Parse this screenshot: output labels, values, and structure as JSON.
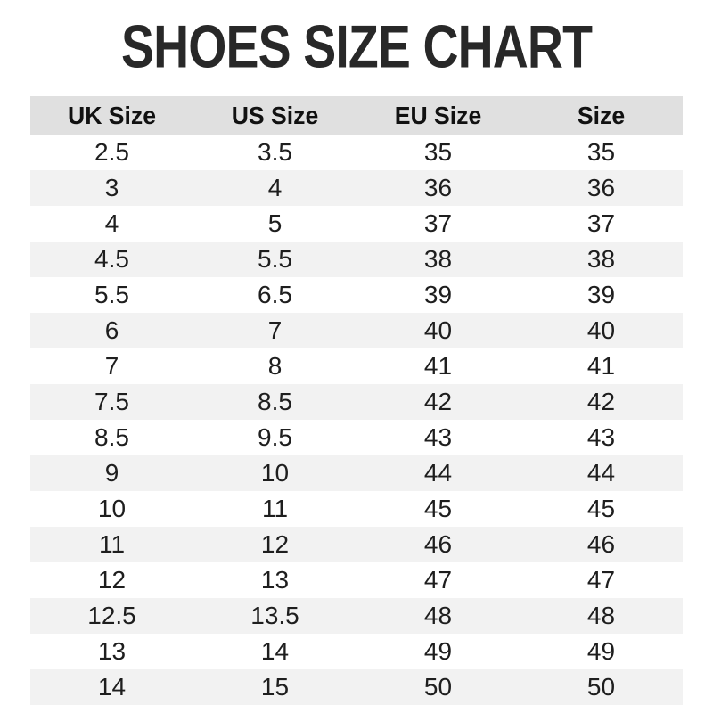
{
  "page_title": "SHOES SIZE CHART",
  "chart_data": {
    "type": "table",
    "title": "SHOES SIZE CHART",
    "columns": [
      "UK Size",
      "US Size",
      "EU Size",
      "Size"
    ],
    "rows": [
      [
        "2.5",
        "3.5",
        "35",
        "35"
      ],
      [
        "3",
        "4",
        "36",
        "36"
      ],
      [
        "4",
        "5",
        "37",
        "37"
      ],
      [
        "4.5",
        "5.5",
        "38",
        "38"
      ],
      [
        "5.5",
        "6.5",
        "39",
        "39"
      ],
      [
        "6",
        "7",
        "40",
        "40"
      ],
      [
        "7",
        "8",
        "41",
        "41"
      ],
      [
        "7.5",
        "8.5",
        "42",
        "42"
      ],
      [
        "8.5",
        "9.5",
        "43",
        "43"
      ],
      [
        "9",
        "10",
        "44",
        "44"
      ],
      [
        "10",
        "11",
        "45",
        "45"
      ],
      [
        "11",
        "12",
        "46",
        "46"
      ],
      [
        "12",
        "13",
        "47",
        "47"
      ],
      [
        "12.5",
        "13.5",
        "48",
        "48"
      ],
      [
        "13",
        "14",
        "49",
        "49"
      ],
      [
        "14",
        "15",
        "50",
        "50"
      ]
    ],
    "layout": {
      "stripes": "alternating rows, even rows shaded",
      "header_position": "top"
    }
  },
  "colors": {
    "page_bg": "#ffffff",
    "title_color": "#282828",
    "header_bg": "#e0e0e0",
    "header_text": "#111111",
    "stripe_bg": "#f2f2f2",
    "cell_text": "#1e1e1e"
  }
}
